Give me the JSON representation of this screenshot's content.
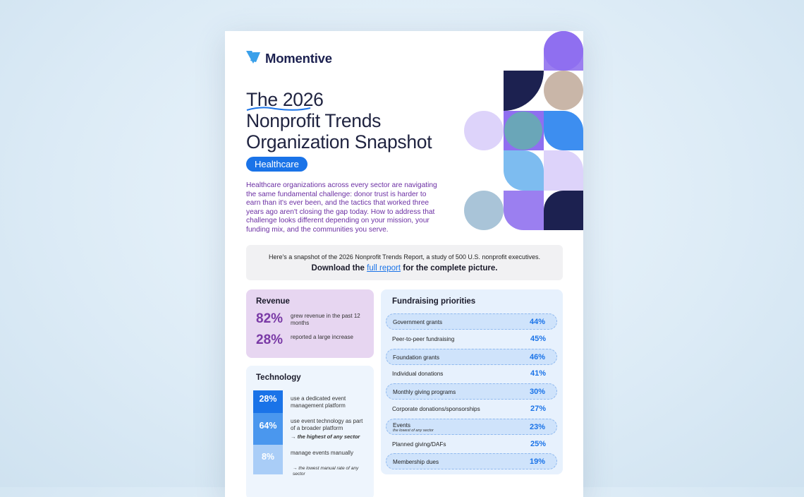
{
  "brand": "Momentive",
  "title": [
    "The 2026",
    "Nonprofit Trends",
    "Organization Snapshot"
  ],
  "tag": "Healthcare",
  "intro": "Healthcare organizations across every sector are navigating the same fundamental challenge: donor trust is harder to earn than it's ever been, and the tactics that worked three years ago aren't closing the gap today. How to address that challenge looks different depending on your mission, your funding mix, and the communities you serve.",
  "banner": {
    "line1": "Here's a snapshot of the 2026 Nonprofit Trends Report, a study of 500 U.S. nonprofit executives.",
    "before": "Download the",
    "link": "full report",
    "after": "for the complete picture."
  },
  "revenue": {
    "title": "Revenue",
    "stats": [
      {
        "value": "82%",
        "text": "grew revenue in the past 12 months"
      },
      {
        "value": "28%",
        "text": "reported a large increase"
      }
    ]
  },
  "technology": {
    "title": "Technology",
    "items": [
      {
        "value": "28%",
        "text": "use a dedicated event management platform"
      },
      {
        "value": "64%",
        "text": "use event technology as part of a broader platform",
        "note": "→ the highest of any sector"
      },
      {
        "value": "8%",
        "text": "manage events manually",
        "note": "→ the lowest manual rate of any sector"
      }
    ]
  },
  "fundraising": {
    "title": "Fundraising priorities",
    "rows": [
      {
        "label": "Government grants",
        "value": "44%"
      },
      {
        "label": "Peer-to-peer fundraising",
        "value": "45%"
      },
      {
        "label": "Foundation grants",
        "value": "46%"
      },
      {
        "label": "Individual donations",
        "value": "41%"
      },
      {
        "label": "Monthly giving programs",
        "value": "30%"
      },
      {
        "label": "Corporate donations/sponsorships",
        "value": "27%"
      },
      {
        "label": "Events",
        "note": "the lowest of any sector",
        "value": "23%"
      },
      {
        "label": "Planned giving/DAFs",
        "value": "25%"
      },
      {
        "label": "Membership dues",
        "value": "19%"
      }
    ]
  }
}
